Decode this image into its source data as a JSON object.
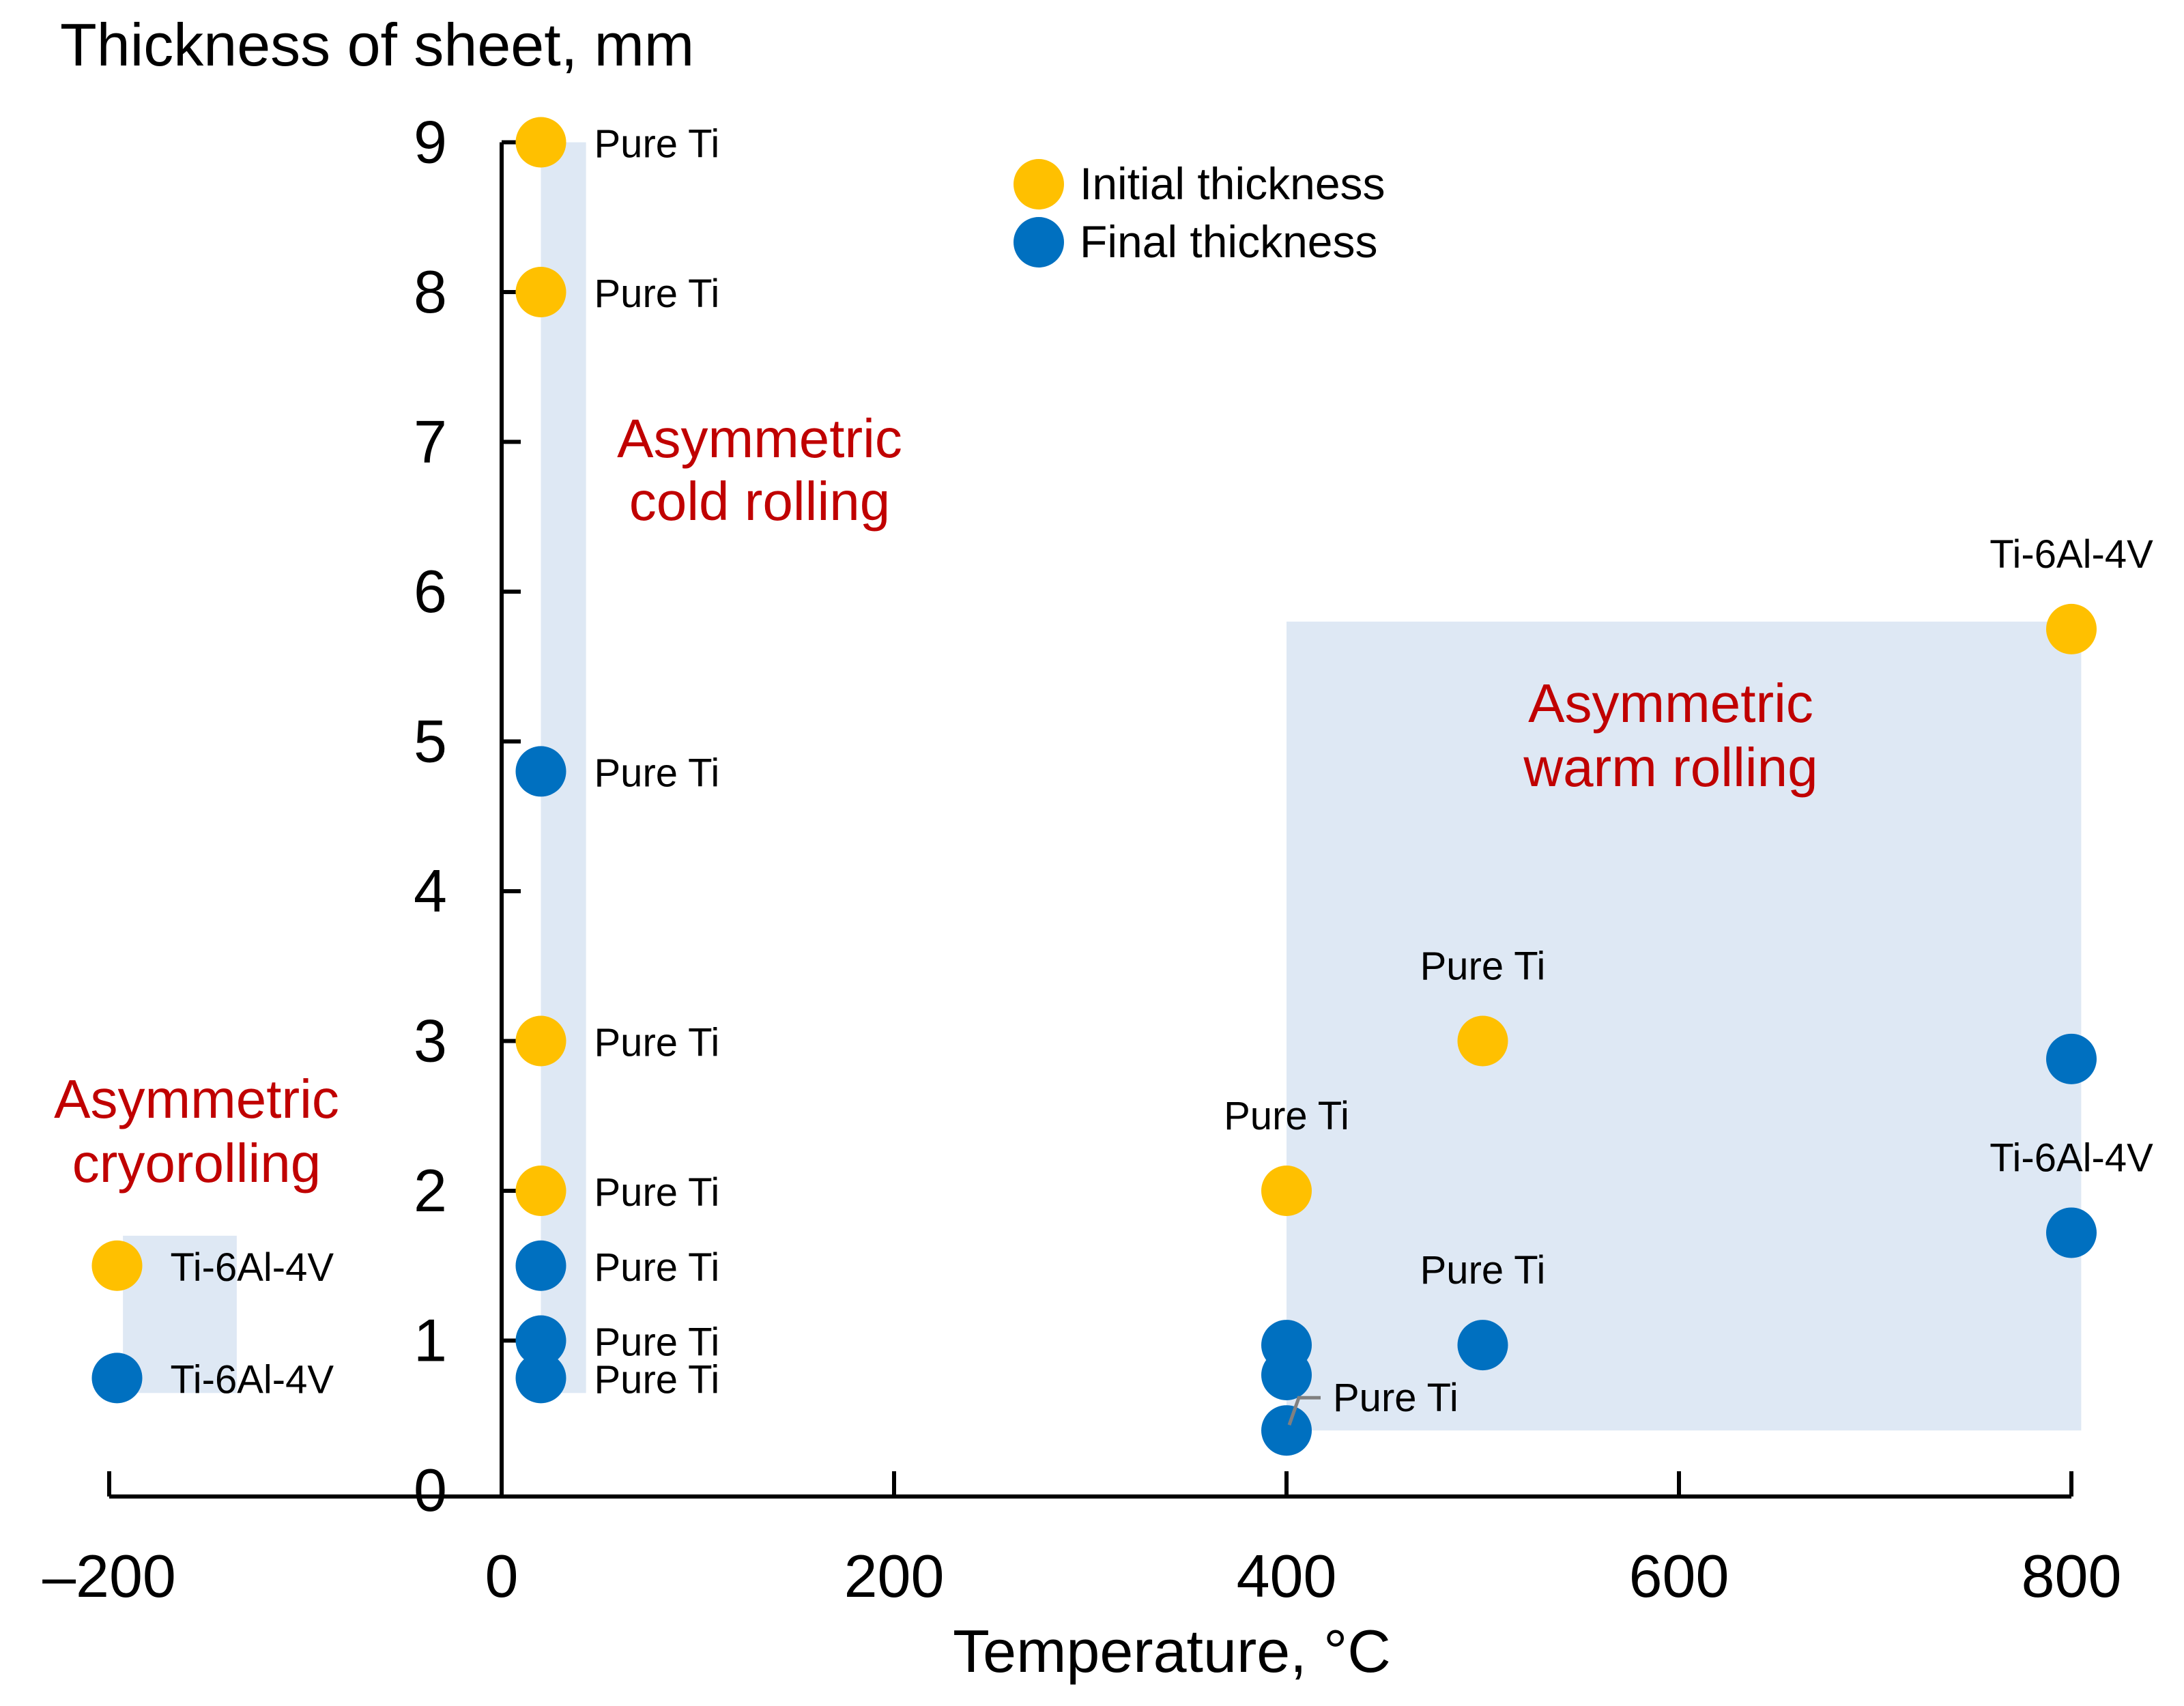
{
  "chart_data": {
    "type": "scatter",
    "title": "",
    "ylabel": "Thickness of sheet, mm",
    "xlabel": "Temperature, °C",
    "xlim": [
      -200,
      800
    ],
    "ylim": [
      0,
      9
    ],
    "xticks": [
      -200,
      0,
      200,
      400,
      600,
      800
    ],
    "xtick_labels": [
      "–200",
      "0",
      "200",
      "400",
      "600",
      "800"
    ],
    "yticks": [
      0,
      1,
      2,
      3,
      4,
      5,
      6,
      7,
      8,
      9
    ],
    "ytick_labels": [
      "0",
      "1",
      "2",
      "3",
      "4",
      "5",
      "6",
      "7",
      "8",
      "9"
    ],
    "legend": {
      "position": "top-center",
      "entries": [
        {
          "name": "Initial thickness",
          "color": "#FFC000"
        },
        {
          "name": "Final thickness",
          "color": "#0070C0"
        }
      ]
    },
    "regions": [
      {
        "label_lines": [
          "Asymmetric",
          "cold rolling"
        ],
        "x_range": [
          20,
          43
        ],
        "y_range": [
          0.65,
          9.0
        ],
        "color": "#DEE8F4",
        "label_color": "#C00000"
      },
      {
        "label_lines": [
          "Asymmetric",
          "warm rolling"
        ],
        "x_range": [
          400,
          805
        ],
        "y_range": [
          0.4,
          5.8
        ],
        "color": "#DEE8F4",
        "label_color": "#C00000"
      },
      {
        "label_lines": [
          "Asymmetric",
          "cryorolling"
        ],
        "x_range": [
          -193,
          -135
        ],
        "y_range": [
          0.65,
          1.7
        ],
        "color": "#DEE8F4",
        "label_color": "#C00000"
      }
    ],
    "series": [
      {
        "name": "Initial thickness",
        "color": "#FFC000",
        "points": [
          {
            "x": 20,
            "y": 9.0,
            "label": "Pure Ti",
            "label_pos": "right"
          },
          {
            "x": 20,
            "y": 8.0,
            "label": "Pure Ti",
            "label_pos": "right"
          },
          {
            "x": 20,
            "y": 3.0,
            "label": "Pure Ti",
            "label_pos": "right"
          },
          {
            "x": 20,
            "y": 2.0,
            "label": "Pure Ti",
            "label_pos": "right"
          },
          {
            "x": 400,
            "y": 2.0,
            "label": "Pure Ti",
            "label_pos": "top"
          },
          {
            "x": 500,
            "y": 3.0,
            "label": "Pure Ti",
            "label_pos": "top"
          },
          {
            "x": 800,
            "y": 5.75,
            "label": "Ti-6Al-4V",
            "label_pos": "top"
          },
          {
            "x": -196,
            "y": 1.5,
            "label": "Ti-6Al-4V",
            "label_pos": "right"
          }
        ]
      },
      {
        "name": "Final thickness",
        "color": "#0070C0",
        "points": [
          {
            "x": 20,
            "y": 4.8,
            "label": "Pure Ti",
            "label_pos": "right"
          },
          {
            "x": 20,
            "y": 1.5,
            "label": "Pure Ti",
            "label_pos": "right"
          },
          {
            "x": 20,
            "y": 1.0,
            "label": "Pure Ti",
            "label_pos": "right"
          },
          {
            "x": 20,
            "y": 0.75,
            "label": "Pure Ti",
            "label_pos": "right"
          },
          {
            "x": 400,
            "y": 0.97,
            "label": "",
            "label_pos": "none"
          },
          {
            "x": 400,
            "y": 0.77,
            "label": "",
            "label_pos": "none"
          },
          {
            "x": 400,
            "y": 0.4,
            "label": "Pure Ti",
            "label_pos": "leader"
          },
          {
            "x": 500,
            "y": 0.97,
            "label": "Pure Ti",
            "label_pos": "top"
          },
          {
            "x": 800,
            "y": 2.88,
            "label": "",
            "label_pos": "none"
          },
          {
            "x": 800,
            "y": 1.72,
            "label": "Ti-6Al-4V",
            "label_pos": "top"
          },
          {
            "x": -196,
            "y": 0.75,
            "label": "Ti-6Al-4V",
            "label_pos": "right"
          }
        ]
      }
    ]
  }
}
